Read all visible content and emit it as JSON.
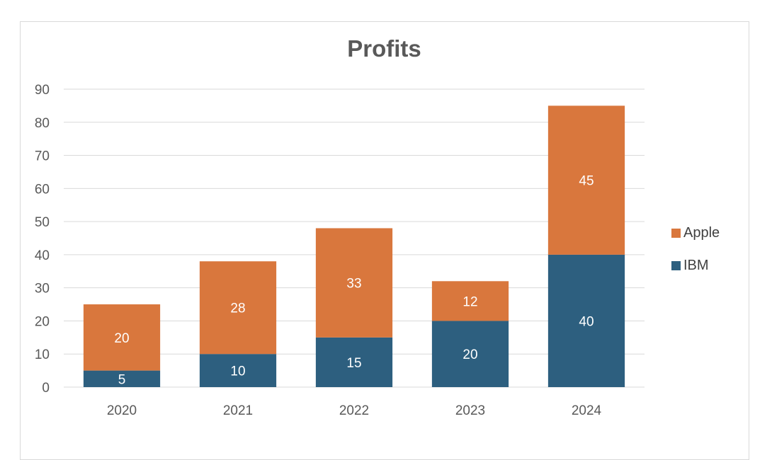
{
  "chart_data": {
    "type": "bar",
    "stacked": true,
    "title": "Profits",
    "categories": [
      "2020",
      "2021",
      "2022",
      "2023",
      "2024"
    ],
    "series": [
      {
        "name": "IBM",
        "values": [
          5,
          10,
          15,
          20,
          40
        ],
        "color": "#2d5f7f"
      },
      {
        "name": "Apple",
        "values": [
          20,
          28,
          33,
          12,
          45
        ],
        "color": "#d9773d"
      }
    ],
    "ylim": [
      0,
      90
    ],
    "yticks": [
      0,
      10,
      20,
      30,
      40,
      50,
      60,
      70,
      80,
      90
    ],
    "grid": true,
    "legend": "right",
    "data_labels": true,
    "xlabel": "",
    "ylabel": ""
  },
  "legend": {
    "items": [
      {
        "label": "Apple",
        "color": "#d9773d"
      },
      {
        "label": "IBM",
        "color": "#2d5f7f"
      }
    ]
  }
}
